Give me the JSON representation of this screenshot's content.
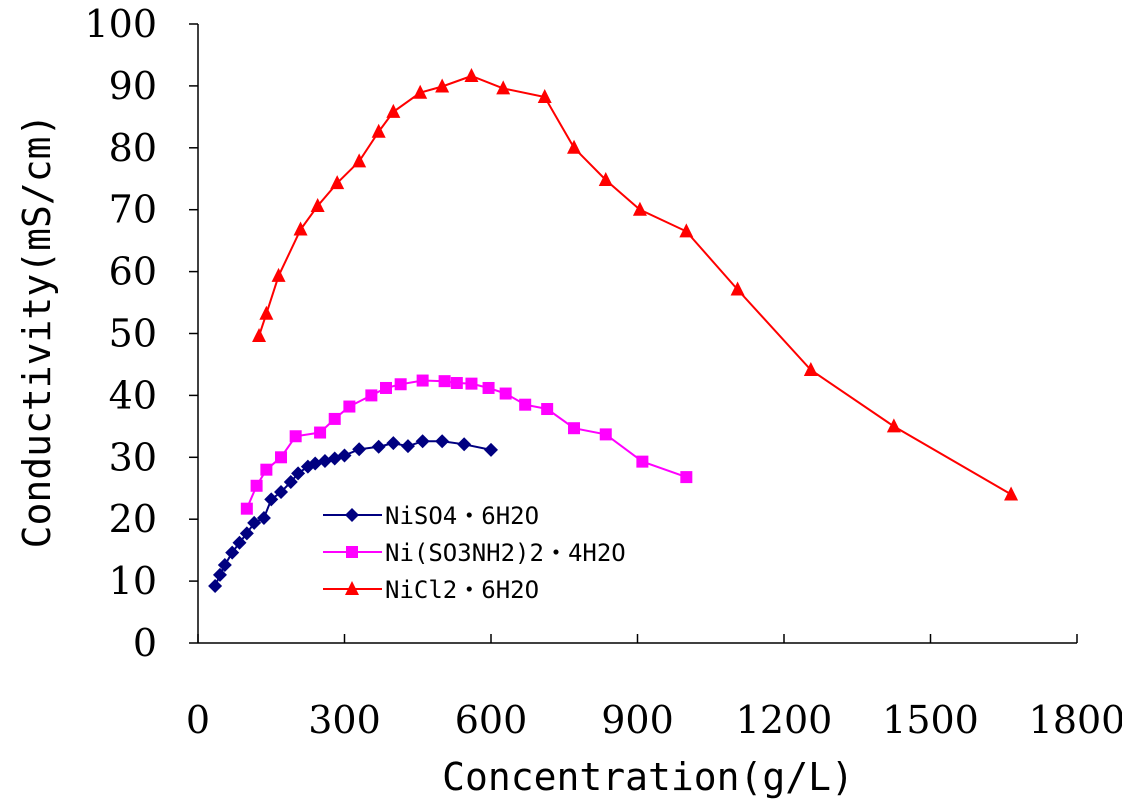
{
  "chart_data": {
    "type": "line",
    "title": "",
    "xlabel": "Concentration(g/L)",
    "ylabel": "Conductivity(mS/cm)",
    "xlim": [
      0,
      1800
    ],
    "ylim": [
      0,
      100
    ],
    "x_ticks": [
      0,
      300,
      600,
      900,
      1200,
      1500,
      1800
    ],
    "y_ticks": [
      0,
      10,
      20,
      30,
      40,
      50,
      60,
      70,
      80,
      90,
      100
    ],
    "grid": false,
    "legend_position": "lower-left inside plot",
    "series": [
      {
        "name": "NiSO4・6H2O",
        "color": "#000080",
        "marker": "diamond",
        "points": [
          [
            35,
            9.2
          ],
          [
            45,
            11.0
          ],
          [
            55,
            12.6
          ],
          [
            70,
            14.6
          ],
          [
            85,
            16.2
          ],
          [
            100,
            17.7
          ],
          [
            115,
            19.4
          ],
          [
            135,
            20.2
          ],
          [
            150,
            23.2
          ],
          [
            170,
            24.4
          ],
          [
            190,
            26.0
          ],
          [
            205,
            27.4
          ],
          [
            225,
            28.5
          ],
          [
            240,
            29.0
          ],
          [
            260,
            29.4
          ],
          [
            280,
            29.8
          ],
          [
            300,
            30.3
          ],
          [
            330,
            31.3
          ],
          [
            370,
            31.7
          ],
          [
            400,
            32.3
          ],
          [
            430,
            31.8
          ],
          [
            460,
            32.6
          ],
          [
            500,
            32.6
          ],
          [
            545,
            32.1
          ],
          [
            600,
            31.2
          ]
        ]
      },
      {
        "name": "Ni(SO3NH2)2・4H2O",
        "color": "#FF00FF",
        "marker": "square",
        "points": [
          [
            100,
            21.7
          ],
          [
            120,
            25.4
          ],
          [
            140,
            28.0
          ],
          [
            170,
            30.0
          ],
          [
            200,
            33.4
          ],
          [
            250,
            34.0
          ],
          [
            280,
            36.2
          ],
          [
            310,
            38.2
          ],
          [
            355,
            40.0
          ],
          [
            385,
            41.2
          ],
          [
            415,
            41.8
          ],
          [
            460,
            42.4
          ],
          [
            505,
            42.3
          ],
          [
            530,
            42.0
          ],
          [
            560,
            41.9
          ],
          [
            595,
            41.2
          ],
          [
            630,
            40.3
          ],
          [
            670,
            38.5
          ],
          [
            715,
            37.8
          ],
          [
            770,
            34.7
          ],
          [
            835,
            33.7
          ],
          [
            910,
            29.3
          ],
          [
            1000,
            26.8
          ]
        ]
      },
      {
        "name": "NiCl2・6H2O",
        "color": "#FF0000",
        "marker": "triangle",
        "points": [
          [
            125,
            49.6
          ],
          [
            140,
            53.2
          ],
          [
            165,
            59.3
          ],
          [
            210,
            66.8
          ],
          [
            245,
            70.6
          ],
          [
            285,
            74.3
          ],
          [
            330,
            77.8
          ],
          [
            370,
            82.6
          ],
          [
            400,
            85.8
          ],
          [
            455,
            88.9
          ],
          [
            500,
            89.9
          ],
          [
            560,
            91.6
          ],
          [
            625,
            89.6
          ],
          [
            710,
            88.2
          ],
          [
            770,
            80.0
          ],
          [
            835,
            74.8
          ],
          [
            905,
            70.0
          ],
          [
            1000,
            66.5
          ],
          [
            1105,
            57.1
          ],
          [
            1255,
            44.1
          ],
          [
            1425,
            35.0
          ],
          [
            1665,
            24.0
          ]
        ]
      }
    ]
  }
}
